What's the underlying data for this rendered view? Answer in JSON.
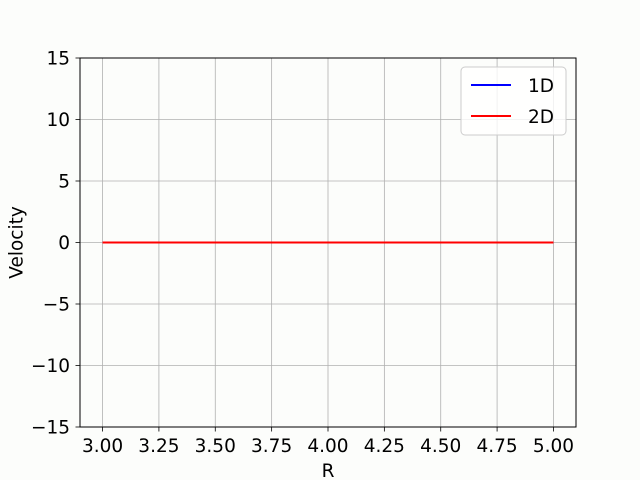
{
  "chart_data": {
    "type": "line",
    "xlabel": "R",
    "ylabel": "Velocity",
    "xlim": [
      2.9,
      5.1
    ],
    "ylim": [
      -15,
      15
    ],
    "xticks": [
      3.0,
      3.25,
      3.5,
      3.75,
      4.0,
      4.25,
      4.5,
      4.75,
      5.0
    ],
    "xtick_labels": [
      "3.00",
      "3.25",
      "3.50",
      "3.75",
      "4.00",
      "4.25",
      "4.50",
      "4.75",
      "5.00"
    ],
    "yticks": [
      -15,
      -10,
      -5,
      0,
      5,
      10,
      15
    ],
    "ytick_labels": [
      "−15",
      "−10",
      "−5",
      "0",
      "5",
      "10",
      "15"
    ],
    "grid": true,
    "legend_position": "top-right",
    "series": [
      {
        "name": "1D",
        "color": "#0000ff",
        "x": [
          3.0,
          5.0
        ],
        "y": [
          0,
          0
        ]
      },
      {
        "name": "2D",
        "color": "#ff0000",
        "x": [
          3.0,
          5.0
        ],
        "y": [
          0,
          0
        ]
      }
    ]
  }
}
